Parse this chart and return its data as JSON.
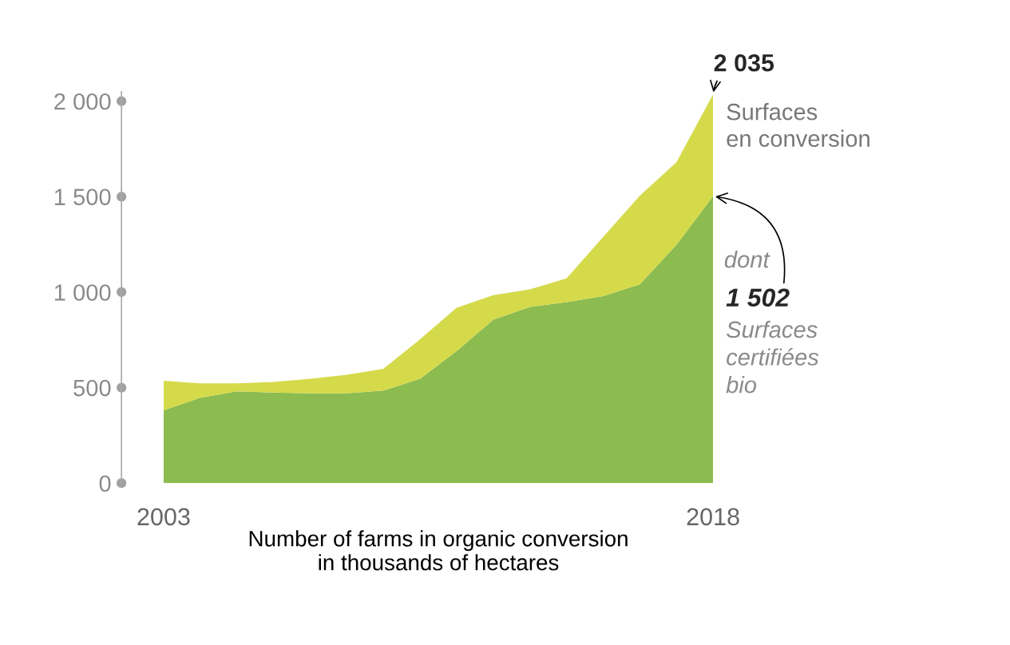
{
  "chart_data": {
    "type": "area",
    "stacked": true,
    "x": [
      2003,
      2004,
      2005,
      2006,
      2007,
      2008,
      2009,
      2010,
      2011,
      2012,
      2013,
      2014,
      2015,
      2016,
      2017,
      2018
    ],
    "series": [
      {
        "name": "Surfaces certifiées bio",
        "color": "#8cbb50",
        "values": [
          381,
          447,
          480,
          474,
          470,
          470,
          485,
          546,
          691,
          856,
          922,
          948,
          979,
          1041,
          1247,
          1502
        ]
      },
      {
        "name": "Surfaces en conversion",
        "color": "#d5da4a",
        "values": [
          155,
          75,
          42,
          56,
          76,
          97,
          113,
          207,
          227,
          128,
          92,
          124,
          310,
          464,
          433,
          533
        ]
      }
    ],
    "xlim": [
      2003,
      2018
    ],
    "xticks": [
      2003,
      2018
    ],
    "ylim": [
      0,
      2050
    ],
    "yticks": [
      0,
      {
        "value": 500,
        "label": "500"
      },
      {
        "value": 1000,
        "label": "1 000"
      },
      {
        "value": 1500,
        "label": "1 500"
      },
      {
        "value": 2000,
        "label": "2 000"
      }
    ],
    "xlabel": "Number of farms in organic conversion\nin thousands of hectares",
    "annotations": [
      {
        "text": "2 035",
        "x": 2018,
        "y": 2035
      },
      "dont",
      {
        "text": "1 502",
        "x": 2018,
        "y": 1502
      }
    ],
    "grid": false,
    "legend": false
  }
}
